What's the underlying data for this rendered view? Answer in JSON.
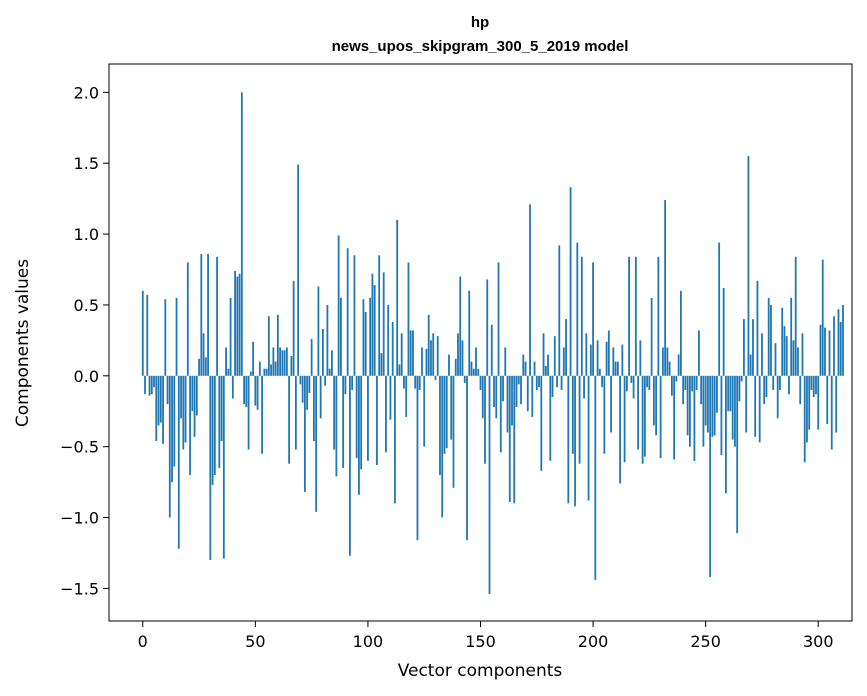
{
  "chart_data": {
    "type": "bar",
    "title": "hp",
    "subtitle": "news_upos_skipgram_300_5_2019 model",
    "xlabel": "Vector components",
    "ylabel": "Components values",
    "xlim": [
      -15,
      315
    ],
    "ylim": [
      -1.73,
      2.2
    ],
    "xticks": [
      0,
      50,
      100,
      150,
      200,
      250,
      300
    ],
    "yticks": [
      -1.5,
      -1.0,
      -0.5,
      0.0,
      0.5,
      1.0,
      1.5,
      2.0
    ],
    "ytick_labels": [
      "−1.5",
      "−1.0",
      "−0.5",
      "0.0",
      "0.5",
      "1.0",
      "1.5",
      "2.0"
    ],
    "bar_color": "#1f77b4",
    "grid": false,
    "values": [
      0.6,
      -0.13,
      0.57,
      -0.14,
      -0.13,
      -0.08,
      -0.46,
      -0.35,
      -0.33,
      -0.48,
      0.54,
      -0.2,
      -1.0,
      -0.75,
      -0.64,
      0.55,
      -1.22,
      -0.3,
      -0.52,
      -0.47,
      0.8,
      -0.7,
      -0.25,
      -0.43,
      -0.28,
      0.12,
      0.86,
      0.3,
      0.13,
      0.86,
      -1.3,
      -0.77,
      -0.7,
      0.84,
      -0.65,
      -0.46,
      -1.29,
      0.2,
      0.05,
      0.55,
      -0.16,
      0.74,
      0.7,
      0.72,
      2.0,
      -0.2,
      -0.22,
      -0.52,
      0.03,
      0.24,
      -0.21,
      -0.24,
      0.1,
      -0.55,
      0.05,
      0.05,
      0.42,
      0.08,
      0.2,
      0.1,
      0.43,
      0.2,
      0.18,
      0.18,
      0.2,
      -0.62,
      0.14,
      0.67,
      -0.52,
      1.49,
      -0.06,
      -0.19,
      -0.82,
      -0.24,
      -0.12,
      0.26,
      -0.46,
      -0.96,
      0.63,
      -0.3,
      0.33,
      -0.07,
      0.5,
      0.05,
      0.18,
      -0.52,
      -0.71,
      0.99,
      0.55,
      -0.65,
      -0.13,
      0.9,
      -1.27,
      -0.1,
      0.85,
      -0.58,
      -0.84,
      -0.66,
      0.54,
      0.45,
      -0.6,
      0.55,
      0.72,
      0.64,
      -0.63,
      0.85,
      0.16,
      0.73,
      -0.54,
      0.5,
      -0.31,
      0.38,
      -0.9,
      1.1,
      0.08,
      0.3,
      -0.09,
      -0.29,
      0.8,
      0.32,
      0.32,
      -0.09,
      -1.16,
      -0.1,
      0.2,
      -0.5,
      0.19,
      0.43,
      0.25,
      0.3,
      -0.03,
      0.28,
      -0.7,
      -1.0,
      -0.55,
      -0.51,
      0.15,
      -0.45,
      -0.79,
      0.12,
      0.3,
      0.7,
      0.25,
      -0.05,
      -1.16,
      0.6,
      0.1,
      0.05,
      0.2,
      0.05,
      -0.1,
      -0.3,
      -0.62,
      0.68,
      -1.54,
      0.36,
      -0.22,
      -0.3,
      0.8,
      -0.54,
      -0.18,
      0.2,
      -0.4,
      -0.89,
      -0.35,
      -0.9,
      -0.22,
      -0.06,
      -0.2,
      0.15,
      0.1,
      -0.25,
      1.21,
      -0.29,
      0.1,
      -0.1,
      -0.08,
      -0.67,
      0.3,
      0.07,
      0.15,
      -0.6,
      -0.15,
      0.28,
      -0.08,
      0.92,
      -0.1,
      0.2,
      0.4,
      -0.9,
      1.33,
      -0.55,
      -0.92,
      0.94,
      -0.62,
      0.84,
      -0.16,
      0.3,
      -0.88,
      0.22,
      0.8,
      -1.44,
      0.25,
      0.05,
      -0.08,
      -0.55,
      0.24,
      0.32,
      -0.4,
      0.2,
      0.1,
      0.1,
      -0.76,
      0.22,
      -0.61,
      -0.11,
      0.84,
      -0.05,
      -0.16,
      0.84,
      -0.52,
      0.25,
      -0.62,
      -0.57,
      -0.08,
      -0.1,
      0.55,
      -0.35,
      -0.42,
      0.84,
      -0.58,
      0.2,
      1.24,
      0.2,
      0.1,
      -0.14,
      -0.59,
      -0.04,
      0.15,
      0.6,
      -0.2,
      -0.1,
      -0.42,
      -0.5,
      -0.11,
      -0.6,
      -0.1,
      0.32,
      -0.2,
      -0.5,
      -0.35,
      -0.4,
      -1.42,
      -0.43,
      -0.42,
      -0.26,
      0.94,
      -0.56,
      0.62,
      -0.83,
      -0.25,
      -0.25,
      -0.45,
      -0.5,
      -1.11,
      -0.18,
      -0.04,
      0.4,
      -0.4,
      1.55,
      0.15,
      0.4,
      -0.43,
      0.67,
      -0.47,
      0.3,
      -0.2,
      -0.15,
      0.55,
      0.5,
      -0.1,
      0.23,
      -0.3,
      -0.1,
      0.48,
      0.35,
      0.28,
      -0.13,
      0.55,
      0.25,
      0.84,
      0.2,
      -0.2,
      0.3,
      -0.61,
      -0.47,
      -0.38,
      -0.1,
      -0.15,
      -0.13,
      -0.38,
      0.36,
      0.82,
      0.34,
      -0.34,
      0.32,
      -0.52,
      0.42,
      -0.4,
      0.47,
      0.38,
      0.5
    ]
  }
}
